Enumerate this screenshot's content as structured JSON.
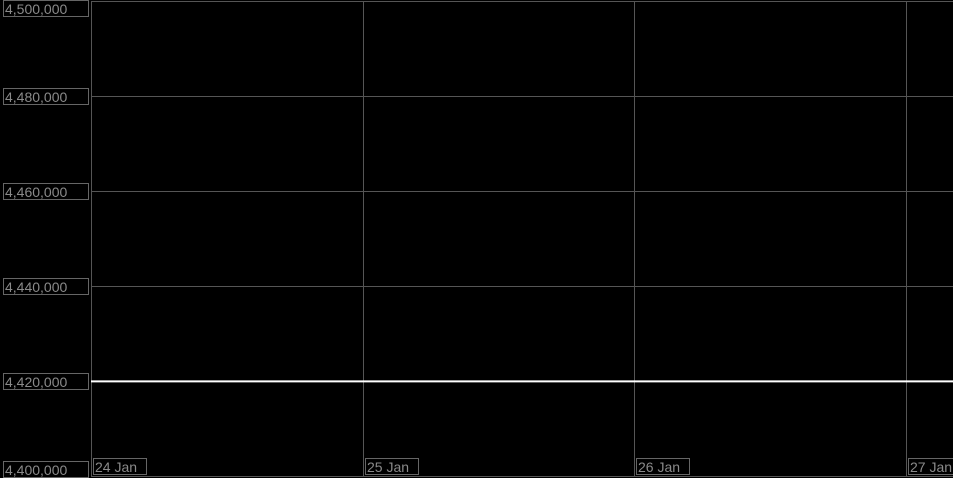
{
  "chart_data": {
    "type": "line",
    "title": "",
    "xlabel": "",
    "ylabel": "",
    "x_ticks": [
      "24 Jan",
      "25 Jan",
      "26 Jan",
      "27 Jan"
    ],
    "y_ticks": [
      "4,400,000",
      "4,420,000",
      "4,440,000",
      "4,460,000",
      "4,480,000",
      "4,500,000"
    ],
    "ylim": [
      4400000,
      4500000
    ],
    "grid": true,
    "background": "#000000",
    "grid_color": "#555555",
    "series": [
      {
        "color": "#ffffff",
        "x": [
          "24 Jan",
          "27 Jan"
        ],
        "y": [
          4419800,
          4419800
        ]
      }
    ]
  }
}
